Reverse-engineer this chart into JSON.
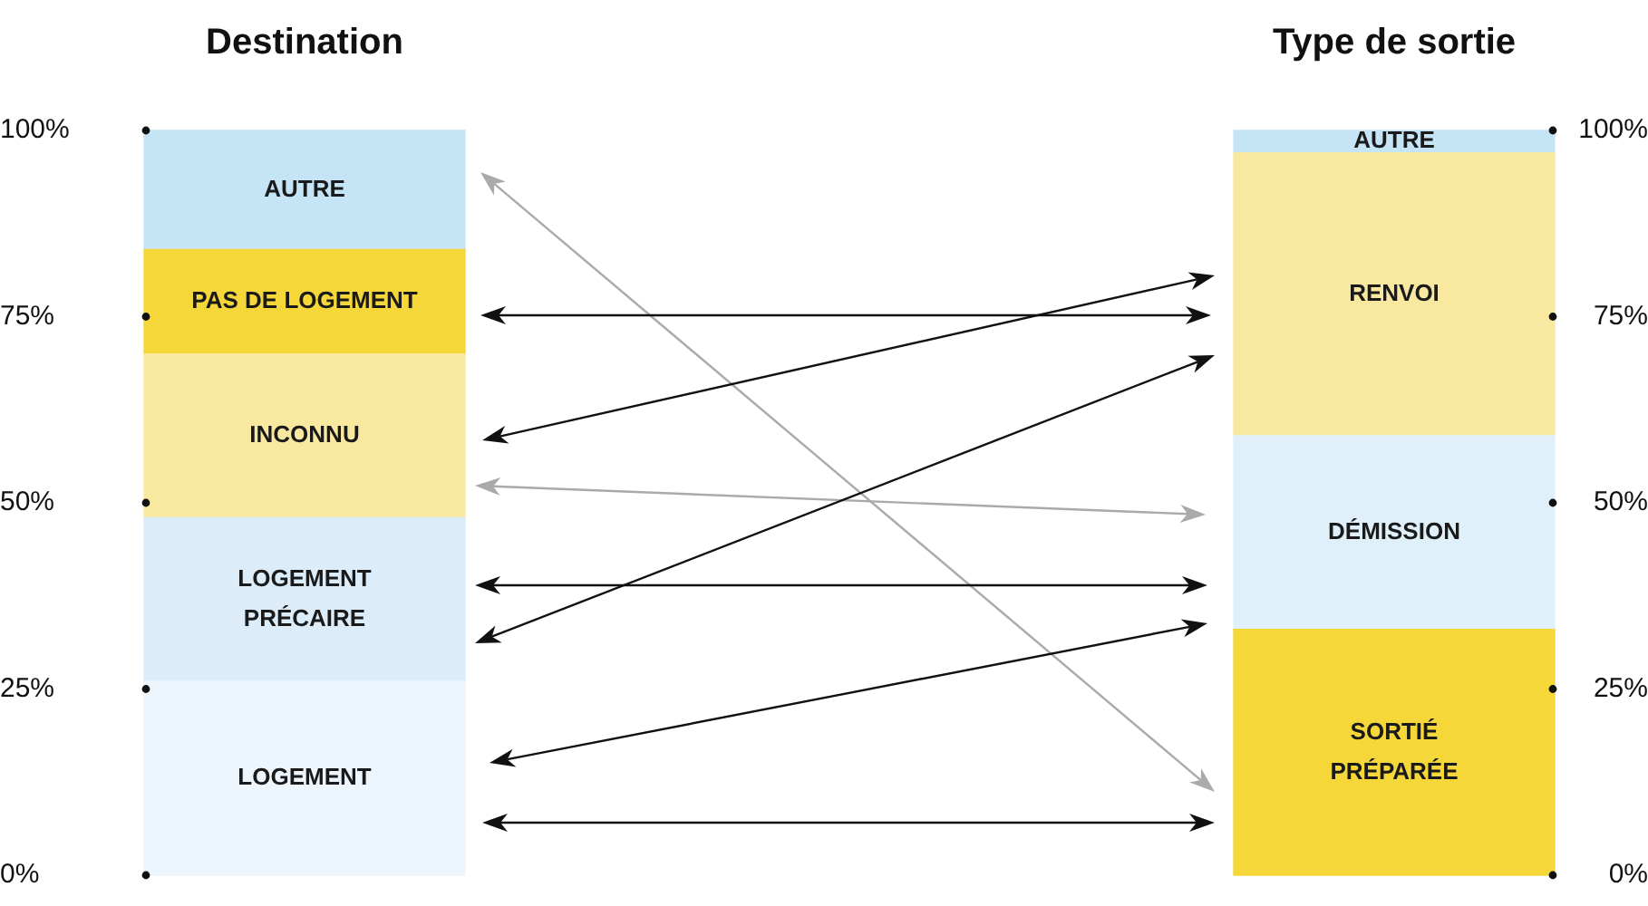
{
  "chart_data": {
    "type": "bar",
    "stacked": true,
    "categories": [
      "Destination",
      "Type de sortie"
    ],
    "series": [
      {
        "name": "LOGEMENT",
        "color": "#eef6fd",
        "values": [
          26,
          null
        ]
      },
      {
        "name": "LOGEMENT PRÉCAIRE",
        "color": "#dcedf9",
        "values": [
          22,
          null
        ]
      },
      {
        "name": "INCONNU",
        "color": "#f9e9a0",
        "values": [
          22,
          null
        ]
      },
      {
        "name": "PAS DE LOGEMENT",
        "color": "#f5d73a",
        "values": [
          14,
          null
        ]
      },
      {
        "name": "AUTRE",
        "color": "#c5e4f6",
        "values": [
          16,
          null
        ]
      },
      {
        "name": "SORTIÉ PRÉPARÉE",
        "color": "#f5d73a",
        "values": [
          null,
          33
        ]
      },
      {
        "name": "DÉMISSION",
        "color": "#dff0fa",
        "values": [
          null,
          26
        ]
      },
      {
        "name": "RENVOI",
        "color": "#f9e9a0",
        "values": [
          null,
          38
        ]
      },
      {
        "name": "AUTRE",
        "color": "#c5e4f6",
        "values": [
          null,
          3
        ]
      }
    ],
    "ylim": [
      0,
      100
    ],
    "yticks": [
      {
        "value": 0,
        "label": "0%"
      },
      {
        "value": 25,
        "label": "25%"
      },
      {
        "value": 50,
        "label": "50%"
      },
      {
        "value": 75,
        "label": "75%"
      },
      {
        "value": 100,
        "label": "100%"
      }
    ],
    "y2lim": [
      0,
      100
    ],
    "y2ticks": [
      {
        "value": 0,
        "label": "0%"
      },
      {
        "value": 25,
        "label": "25%"
      },
      {
        "value": 50,
        "label": "50%"
      },
      {
        "value": 75,
        "label": "75%"
      },
      {
        "value": 100,
        "label": "100%"
      }
    ],
    "legend": false
  }
}
